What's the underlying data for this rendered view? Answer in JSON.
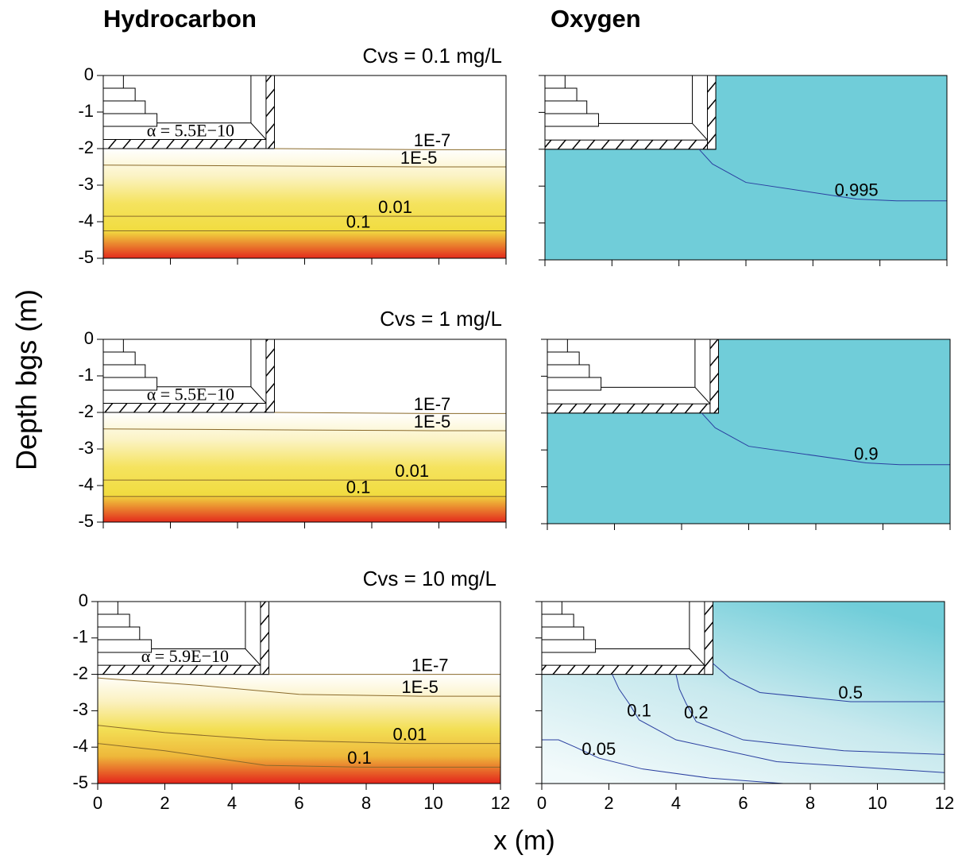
{
  "column_titles": [
    "Hydrocarbon",
    "Oxygen"
  ],
  "y_label": "Depth bgs (m)",
  "x_label": "x (m)",
  "chart_data": [
    {
      "type": "contour",
      "title": "Cvs = 0.1 mg/L",
      "annotation": "α = 5.5E−10",
      "xlim": [
        0,
        12
      ],
      "ylim": [
        -5,
        0
      ],
      "xticks": [
        0,
        2,
        4,
        6,
        8,
        10,
        12
      ],
      "yticks": [
        0,
        -1,
        -2,
        -3,
        -4,
        -5
      ],
      "xtick_labels": false,
      "ytick_labels": true,
      "colors": [
        "#ffffff",
        "#fbf3c4",
        "#f5e35e",
        "#f1dc40",
        "#e32a1c"
      ],
      "line_color": "#8a6a2a",
      "contours": [
        {
          "value": 1e-07,
          "label": "1E-7",
          "x": [
            5.1,
            9.8,
            12
          ],
          "y": [
            -2.0,
            -2.03,
            -2.03
          ]
        },
        {
          "value": 1e-05,
          "label": "1E-5",
          "x": [
            0,
            9.4,
            12
          ],
          "y": [
            -2.45,
            -2.5,
            -2.5
          ]
        },
        {
          "value": 0.01,
          "label": "0.01",
          "x": [
            0,
            8.7,
            12
          ],
          "y": [
            -3.85,
            -3.85,
            -3.85
          ]
        },
        {
          "value": 0.1,
          "label": "0.1",
          "x": [
            0,
            7.6,
            12
          ],
          "y": [
            -4.25,
            -4.25,
            -4.25
          ]
        }
      ]
    },
    {
      "type": "contour",
      "xlim": [
        0,
        12
      ],
      "ylim": [
        -5,
        0
      ],
      "xticks": [
        0,
        2,
        4,
        6,
        8,
        10,
        12
      ],
      "yticks": [
        0,
        -1,
        -2,
        -3,
        -4,
        -5
      ],
      "xtick_labels": false,
      "ytick_labels": false,
      "colors": [
        "#70cdd9",
        "#70cdd9"
      ],
      "line_color": "#2a3fa0",
      "contours": [
        {
          "value": 0.995,
          "label": "0.995",
          "x": [
            4.6,
            5.0,
            6.0,
            9.3,
            10.5,
            11.5,
            12
          ],
          "y": [
            -2.0,
            -2.4,
            -2.9,
            -3.35,
            -3.4,
            -3.4,
            -3.4
          ]
        }
      ]
    },
    {
      "type": "contour",
      "title": "Cvs = 1 mg/L",
      "annotation": "α = 5.5E−10",
      "xlim": [
        0,
        12
      ],
      "ylim": [
        -5,
        0
      ],
      "xticks": [
        0,
        2,
        4,
        6,
        8,
        10,
        12
      ],
      "yticks": [
        0,
        -1,
        -2,
        -3,
        -4,
        -5
      ],
      "xtick_labels": false,
      "ytick_labels": true,
      "colors": [
        "#ffffff",
        "#fbf3c4",
        "#f5e35e",
        "#f1dc40",
        "#e32a1c"
      ],
      "line_color": "#8a6a2a",
      "contours": [
        {
          "value": 1e-07,
          "label": "1E-7",
          "x": [
            5.1,
            9.8,
            12
          ],
          "y": [
            -2.0,
            -2.03,
            -2.03
          ]
        },
        {
          "value": 1e-05,
          "label": "1E-5",
          "x": [
            0,
            9.8,
            12
          ],
          "y": [
            -2.45,
            -2.5,
            -2.5
          ]
        },
        {
          "value": 0.01,
          "label": "0.01",
          "x": [
            0,
            9.2,
            12
          ],
          "y": [
            -3.85,
            -3.85,
            -3.85
          ]
        },
        {
          "value": 0.1,
          "label": "0.1",
          "x": [
            0,
            7.6,
            12
          ],
          "y": [
            -4.3,
            -4.3,
            -4.3
          ]
        }
      ]
    },
    {
      "type": "contour",
      "xlim": [
        0,
        12
      ],
      "ylim": [
        -5,
        0
      ],
      "xticks": [
        0,
        2,
        4,
        6,
        8,
        10,
        12
      ],
      "yticks": [
        0,
        -1,
        -2,
        -3,
        -4,
        -5
      ],
      "xtick_labels": false,
      "ytick_labels": false,
      "colors": [
        "#70cdd9",
        "#70cdd9"
      ],
      "line_color": "#2a3fa0",
      "contours": [
        {
          "value": 0.9,
          "label": "0.9",
          "x": [
            4.6,
            5.0,
            6.0,
            9.5,
            10.5,
            11.5,
            12
          ],
          "y": [
            -2.0,
            -2.4,
            -2.9,
            -3.35,
            -3.4,
            -3.4,
            -3.4
          ]
        }
      ]
    },
    {
      "type": "contour",
      "title": "Cvs = 10 mg/L",
      "annotation": "α = 5.9E−10",
      "xlim": [
        0,
        12
      ],
      "ylim": [
        -5,
        0
      ],
      "xticks": [
        0,
        2,
        4,
        6,
        8,
        10,
        12
      ],
      "yticks": [
        0,
        -1,
        -2,
        -3,
        -4,
        -5
      ],
      "xtick_labels": true,
      "ytick_labels": true,
      "colors": [
        "#ffffff",
        "#fbf1c0",
        "#f3df55",
        "#eeb83a",
        "#e3241b"
      ],
      "line_color": "#8a6a2a",
      "contours": [
        {
          "value": 1e-07,
          "label": "1E-7",
          "x": [
            5.1,
            9.9,
            12
          ],
          "y": [
            -2.0,
            -2.0,
            -2.0
          ]
        },
        {
          "value": 1e-05,
          "label": "1E-5",
          "x": [
            0,
            3,
            6,
            9.6,
            10.5,
            11.5,
            12
          ],
          "y": [
            -2.1,
            -2.3,
            -2.55,
            -2.6,
            -2.6,
            -2.6,
            -2.6
          ]
        },
        {
          "value": 0.01,
          "label": "0.01",
          "x": [
            0,
            2,
            5,
            9.3,
            10.5,
            11.5,
            12
          ],
          "y": [
            -3.4,
            -3.6,
            -3.8,
            -3.9,
            -3.9,
            -3.9,
            -3.9
          ]
        },
        {
          "value": 0.1,
          "label": "0.1",
          "x": [
            0,
            2,
            5,
            7.8,
            9.5,
            11,
            12
          ],
          "y": [
            -3.9,
            -4.1,
            -4.5,
            -4.55,
            -4.55,
            -4.55,
            -4.55
          ]
        }
      ]
    },
    {
      "type": "contour",
      "xlim": [
        0,
        12
      ],
      "ylim": [
        -5,
        0
      ],
      "xticks": [
        0,
        2,
        4,
        6,
        8,
        10,
        12
      ],
      "yticks": [
        0,
        -1,
        -2,
        -3,
        -4,
        -5
      ],
      "xtick_labels": true,
      "ytick_labels": false,
      "colors": [
        "#f2fafb",
        "#c8e9ee",
        "#70cdd9"
      ],
      "line_color": "#2a3fa0",
      "contours": [
        {
          "value": 0.05,
          "label": "0.05",
          "x": [
            0,
            0.5,
            1.0,
            1.7,
            3,
            5,
            7.2
          ],
          "y": [
            -3.8,
            -3.8,
            -4.0,
            -4.3,
            -4.6,
            -4.85,
            -5.0
          ]
        },
        {
          "value": 0.1,
          "label": "0.1",
          "x": [
            2.1,
            2.3,
            2.6,
            2.9,
            4,
            7,
            12
          ],
          "y": [
            -2.0,
            -2.4,
            -2.8,
            -3.25,
            -3.8,
            -4.4,
            -4.7
          ]
        },
        {
          "value": 0.2,
          "label": "0.2",
          "x": [
            4.0,
            4.1,
            4.3,
            4.6,
            6,
            9,
            12
          ],
          "y": [
            -2.0,
            -2.4,
            -2.8,
            -3.3,
            -3.8,
            -4.1,
            -4.2
          ]
        },
        {
          "value": 0.5,
          "label": "0.5",
          "x": [
            5.1,
            5.6,
            6.5,
            9.2,
            10,
            11,
            12
          ],
          "y": [
            -1.7,
            -2.1,
            -2.5,
            -2.75,
            -2.75,
            -2.75,
            -2.75
          ]
        }
      ]
    }
  ]
}
